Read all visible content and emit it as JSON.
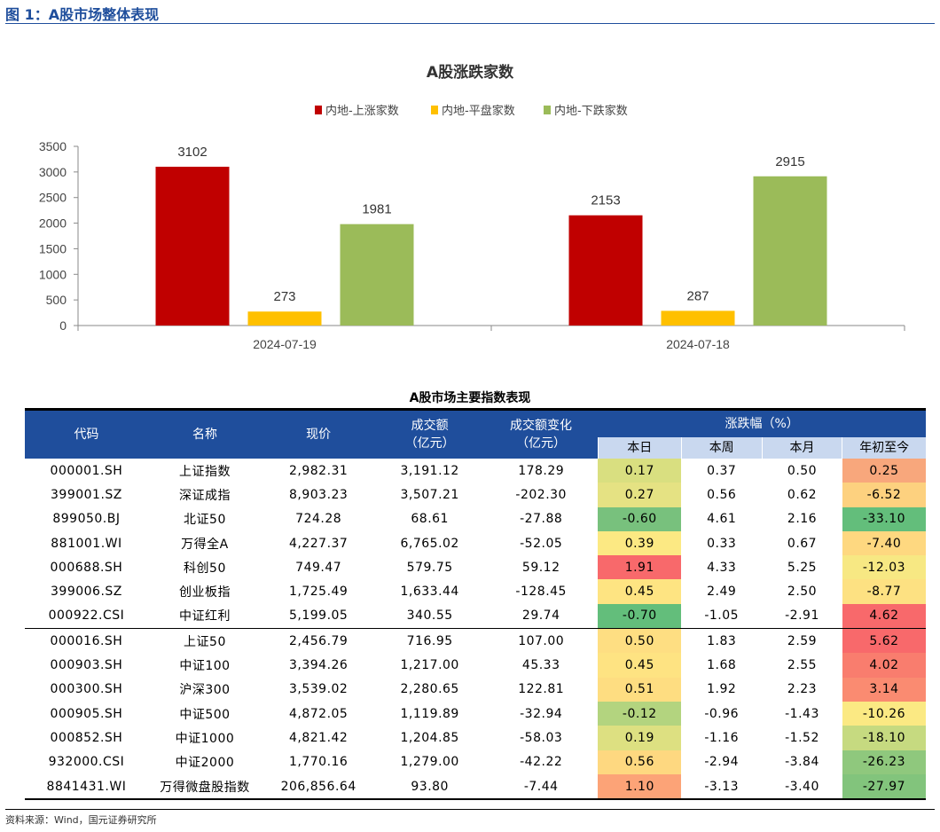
{
  "figure": {
    "title": "图 1：A股市场整体表现",
    "source": "资料来源：Wind，国元证券研究所"
  },
  "chart_data": {
    "type": "bar",
    "title": "A股涨跌家数",
    "categories": [
      "2024-07-19",
      "2024-07-18"
    ],
    "series": [
      {
        "name": "内地-上涨家数",
        "values": [
          3102,
          2153
        ],
        "color": "#c00000"
      },
      {
        "name": "内地-平盘家数",
        "values": [
          273,
          287
        ],
        "color": "#ffc000"
      },
      {
        "name": "内地-下跌家数",
        "values": [
          1981,
          2915
        ],
        "color": "#9bbb59"
      }
    ],
    "ylim": [
      0,
      3500
    ],
    "yticks": [
      0,
      500,
      1000,
      1500,
      2000,
      2500,
      3000,
      3500
    ],
    "grid": false,
    "legend_position": "top",
    "data_labels": true
  },
  "table": {
    "title": "A股市场主要指数表现",
    "headers": {
      "code": "代码",
      "name": "名称",
      "price": "现价",
      "turnover_l1": "成交额",
      "turnover_l2": "（亿元）",
      "change_l1": "成交额变化",
      "change_l2": "（亿元）",
      "pct_group": "涨跌幅（%）",
      "day": "本日",
      "week": "本周",
      "month": "本月",
      "ytd": "年初至今"
    },
    "rows": [
      {
        "code": "000001.SH",
        "name": "上证指数",
        "price": "2,982.31",
        "turnover": "3,191.12",
        "change": "178.29",
        "day": "0.17",
        "week": "0.37",
        "month": "0.50",
        "ytd": "0.25",
        "day_color": "#d9df80",
        "ytd_color": "#f8a77c"
      },
      {
        "code": "399001.SZ",
        "name": "深证成指",
        "price": "8,903.23",
        "turnover": "3,507.21",
        "change": "-202.30",
        "day": "0.27",
        "week": "0.56",
        "month": "0.62",
        "ytd": "-6.52",
        "day_color": "#e5e283",
        "ytd_color": "#fdd17f"
      },
      {
        "code": "899050.BJ",
        "name": "北证50",
        "price": "724.28",
        "turnover": "68.61",
        "change": "-27.88",
        "day": "-0.60",
        "week": "4.61",
        "month": "2.16",
        "ytd": "-33.10",
        "day_color": "#78c17d",
        "ytd_color": "#63be7b"
      },
      {
        "code": "881001.WI",
        "name": "万得全A",
        "price": "4,227.37",
        "turnover": "6,765.02",
        "change": "-52.05",
        "day": "0.39",
        "week": "0.33",
        "month": "0.67",
        "ytd": "-7.40",
        "day_color": "#fce983",
        "ytd_color": "#fed880"
      },
      {
        "code": "000688.SH",
        "name": "科创50",
        "price": "749.47",
        "turnover": "579.75",
        "change": "59.12",
        "day": "1.91",
        "week": "4.33",
        "month": "5.25",
        "ytd": "-12.03",
        "day_color": "#f8696b",
        "ytd_color": "#f7e883"
      },
      {
        "code": "399006.SZ",
        "name": "创业板指",
        "price": "1,725.49",
        "turnover": "1,633.44",
        "change": "-128.45",
        "day": "0.45",
        "week": "2.49",
        "month": "2.50",
        "ytd": "-8.77",
        "day_color": "#fee482",
        "ytd_color": "#fde182"
      },
      {
        "code": "000922.CSI",
        "name": "中证红利",
        "price": "5,199.05",
        "turnover": "340.55",
        "change": "29.74",
        "day": "-0.70",
        "week": "-1.05",
        "month": "-2.91",
        "ytd": "4.62",
        "day_color": "#63be7b",
        "ytd_color": "#f8696b",
        "group_start": false
      },
      {
        "code": "000016.SH",
        "name": "上证50",
        "price": "2,456.79",
        "turnover": "716.95",
        "change": "107.00",
        "day": "0.50",
        "week": "1.83",
        "month": "2.59",
        "ytd": "5.62",
        "day_color": "#fede82",
        "ytd_color": "#f8696b",
        "group_start": true
      },
      {
        "code": "000903.SH",
        "name": "中证100",
        "price": "3,394.26",
        "turnover": "1,217.00",
        "change": "45.33",
        "day": "0.45",
        "week": "1.68",
        "month": "2.55",
        "ytd": "4.02",
        "day_color": "#fee382",
        "ytd_color": "#f97d6e"
      },
      {
        "code": "000300.SH",
        "name": "沪深300",
        "price": "3,539.02",
        "turnover": "2,280.65",
        "change": "122.81",
        "day": "0.51",
        "week": "1.92",
        "month": "2.23",
        "ytd": "3.14",
        "day_color": "#fedd81",
        "ytd_color": "#fa8b71"
      },
      {
        "code": "000905.SH",
        "name": "中证500",
        "price": "4,872.05",
        "turnover": "1,119.89",
        "change": "-32.94",
        "day": "-0.12",
        "week": "-0.96",
        "month": "-1.43",
        "ytd": "-10.26",
        "day_color": "#b3d47f",
        "ytd_color": "#fbe983"
      },
      {
        "code": "000852.SH",
        "name": "中证1000",
        "price": "4,821.42",
        "turnover": "1,204.85",
        "change": "-58.03",
        "day": "0.19",
        "week": "-1.16",
        "month": "-1.52",
        "ytd": "-18.10",
        "day_color": "#dde081",
        "ytd_color": "#c6da80"
      },
      {
        "code": "932000.CSI",
        "name": "中证2000",
        "price": "1,770.16",
        "turnover": "1,279.00",
        "change": "-42.22",
        "day": "0.56",
        "week": "-2.94",
        "month": "-3.84",
        "ytd": "-26.23",
        "day_color": "#fed880",
        "ytd_color": "#8fc87d"
      },
      {
        "code": "8841431.WI",
        "name": "万得微盘股指数",
        "price": "206,856.64",
        "turnover": "93.80",
        "change": "-7.44",
        "day": "1.10",
        "week": "-3.13",
        "month": "-3.40",
        "ytd": "-27.97",
        "day_color": "#fca377",
        "ytd_color": "#82c47c"
      }
    ]
  }
}
